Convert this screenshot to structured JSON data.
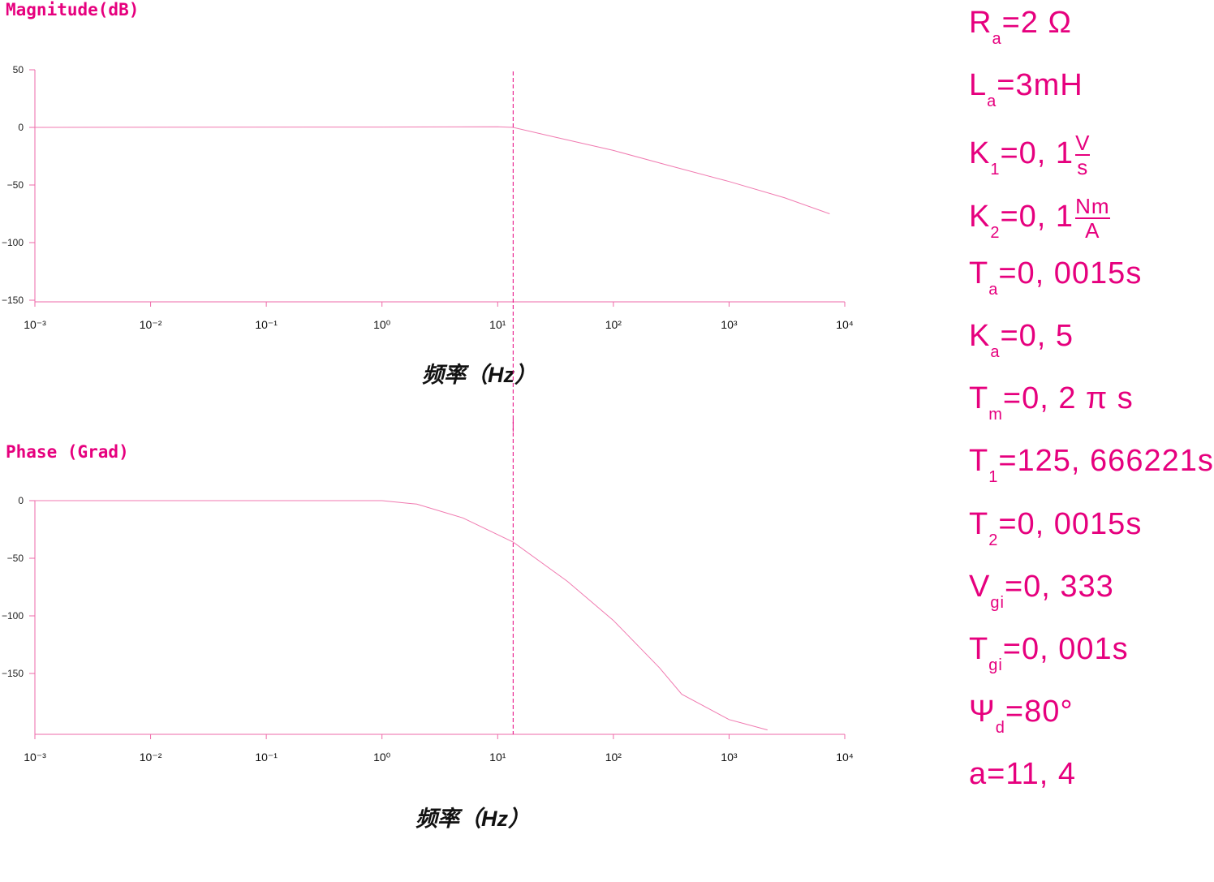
{
  "colors": {
    "accent": "#e6007e",
    "curve": "#f07ab0",
    "axis": "#ee6aa8"
  },
  "chart_data": [
    {
      "type": "line",
      "title": "Magnitude(dB)",
      "xlabel": "频率（Hz）",
      "xscale": "log",
      "xlim": [
        0.001,
        10000
      ],
      "ylim": [
        -150,
        50
      ],
      "xticks": [
        "10⁻³",
        "10⁻²",
        "10⁻¹",
        "10⁰",
        "10¹",
        "10²",
        "10³",
        "10⁴"
      ],
      "yticks": [
        "50",
        "0",
        "−50",
        "−100",
        "−150"
      ],
      "ytick_values": [
        50,
        0,
        -50,
        -100,
        -150
      ],
      "x": [
        0.001,
        1,
        10,
        13.6,
        30,
        100,
        300,
        1000,
        3000,
        7400
      ],
      "y": [
        0,
        0.3,
        0.5,
        0,
        -8,
        -20,
        -33,
        -47,
        -61,
        -75
      ],
      "marker_line_x": 13.6
    },
    {
      "type": "line",
      "title": "Phase (Grad)",
      "xlabel": "频率（Hz）",
      "xscale": "log",
      "xlim": [
        0.001,
        10000
      ],
      "ylim": [
        -200,
        0
      ],
      "xticks": [
        "10⁻³",
        "10⁻²",
        "10⁻¹",
        "10⁰",
        "10¹",
        "10²",
        "10³",
        "10⁴"
      ],
      "yticks": [
        "0",
        "−50",
        "−100",
        "−150"
      ],
      "ytick_values": [
        0,
        -50,
        -100,
        -150
      ],
      "x": [
        0.001,
        1,
        2,
        5,
        13.6,
        40,
        100,
        250,
        390,
        1000,
        2150
      ],
      "y": [
        0,
        0,
        -3,
        -15,
        -36,
        -70,
        -104,
        -145,
        -168,
        -190,
        -199
      ],
      "marker_line_x": 13.6
    }
  ],
  "params": [
    {
      "sym": "R",
      "sub": "a",
      "val": "=2 Ω"
    },
    {
      "sym": "L",
      "sub": "a",
      "val": "=3mH"
    },
    {
      "sym": "K",
      "sub": "1",
      "val": "=0, 1",
      "num": "V",
      "den": "s"
    },
    {
      "sym": "K",
      "sub": "2",
      "val": "=0, 1",
      "num": "Nm",
      "den": "A"
    },
    {
      "sym": "T",
      "sub": "a",
      "val": "=0, 0015s"
    },
    {
      "sym": "K",
      "sub": "a",
      "val": "=0, 5"
    },
    {
      "sym": "T",
      "sub": "m",
      "val": "=0, 2 π s"
    },
    {
      "sym": "T",
      "sub": "1",
      "val": "=125, 666221s"
    },
    {
      "sym": "T",
      "sub": "2",
      "val": "=0, 0015s"
    },
    {
      "sym": "V",
      "sub": "gi",
      "val": "=0, 333"
    },
    {
      "sym": "T",
      "sub": "gi",
      "val": "=0, 001s"
    },
    {
      "sym": " Ψ",
      "sub": "d",
      "val": "=80°"
    },
    {
      "sym": "a=11, 4",
      "sub": "",
      "val": ""
    }
  ]
}
